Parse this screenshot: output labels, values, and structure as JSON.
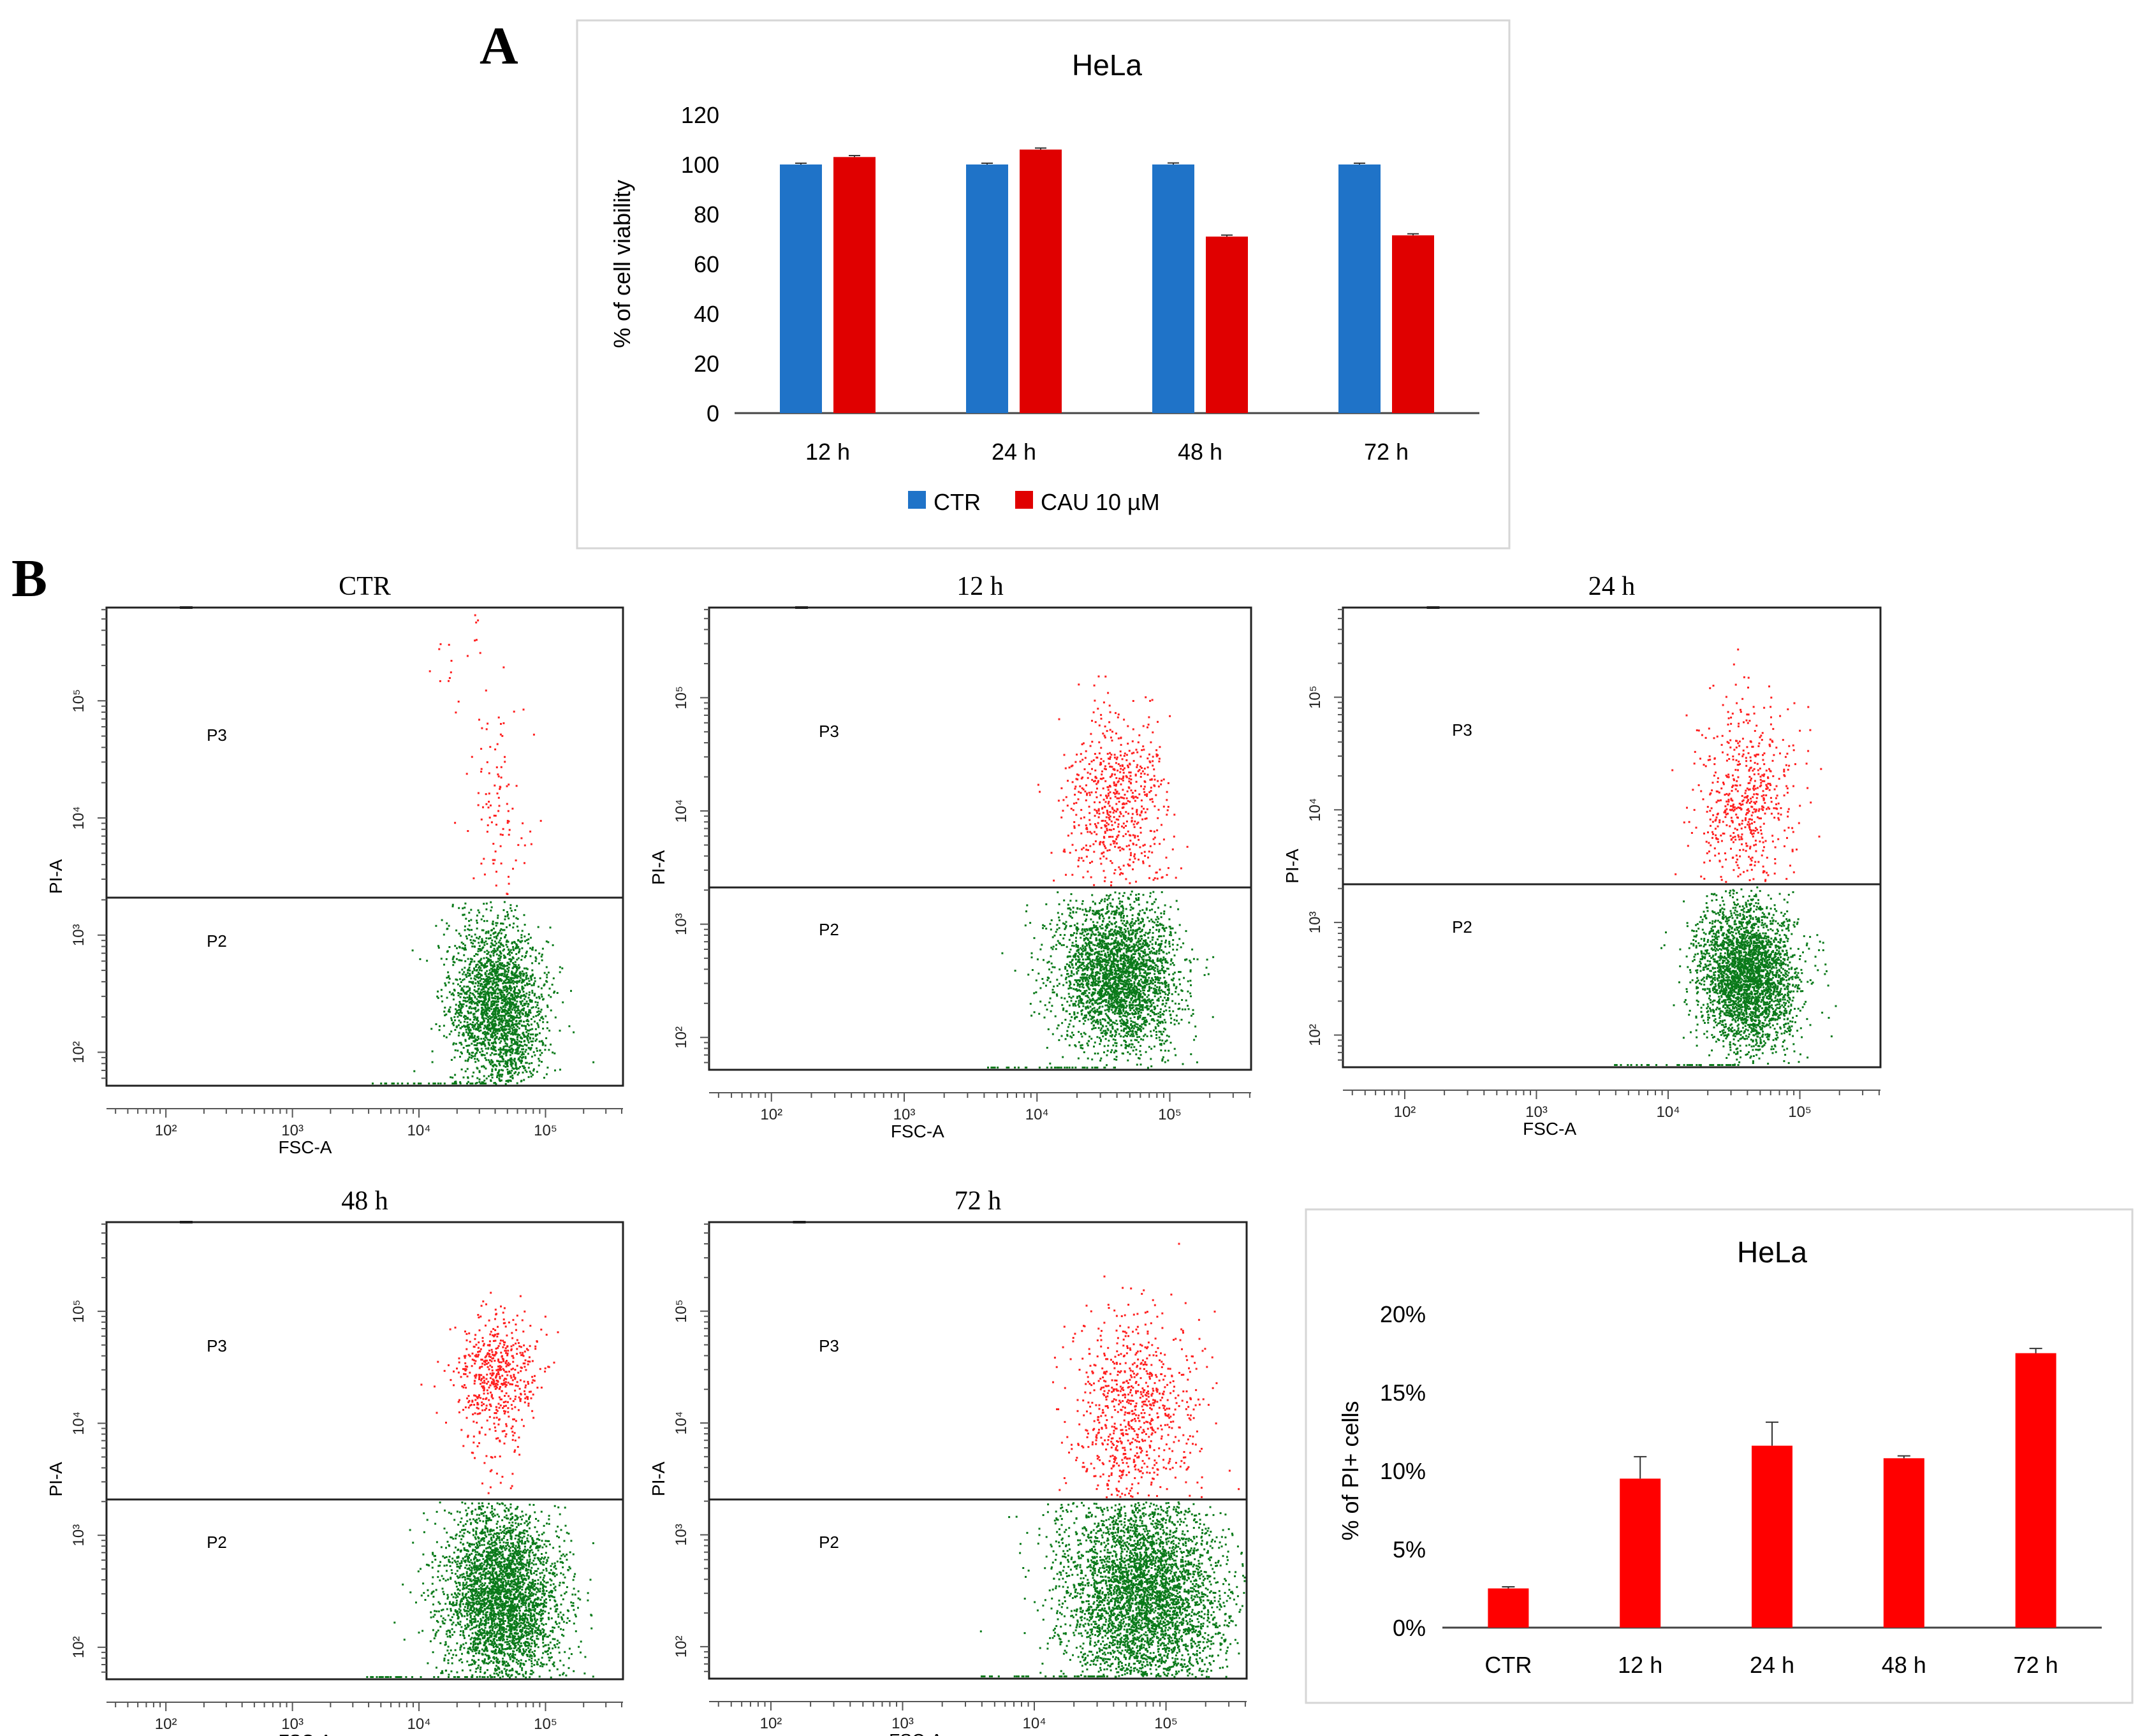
{
  "figure": {
    "panel_a_label": "A",
    "panel_b_label": "B"
  },
  "colors": {
    "ctr_blue": "#1f73c8",
    "cau_red": "#e00000",
    "pi_bar_red": "#ff0000",
    "p3_dot": "#ff2020",
    "p2_dot": "#0a7a1a",
    "error_bar": "#333333",
    "axis": "#000000"
  },
  "chart_data": [
    {
      "id": "panel-a",
      "type": "bar",
      "title": "HeLa",
      "xlabel": "",
      "ylabel": "% of cell viability",
      "categories": [
        "12 h",
        "24 h",
        "48 h",
        "72 h"
      ],
      "series": [
        {
          "name": "CTR",
          "values": [
            100,
            100,
            100,
            100
          ],
          "errors": [
            0.5,
            0.5,
            0.6,
            0.5
          ]
        },
        {
          "name": "CAU 10 µM",
          "values": [
            103,
            106,
            71,
            71.5
          ],
          "errors": [
            0.6,
            0.6,
            0.6,
            0.6
          ]
        }
      ],
      "ylim": [
        0,
        120
      ],
      "yticks": [
        "0",
        "20",
        "40",
        "60",
        "80",
        "100",
        "120"
      ],
      "legend": [
        "CTR",
        "CAU 10 µM"
      ],
      "legend_position": "bottom"
    },
    {
      "id": "panel-b-bar",
      "type": "bar",
      "title": "HeLa",
      "xlabel": "",
      "ylabel": "% of PI+ cells",
      "categories": [
        "CTR",
        "12 h",
        "24 h",
        "48 h",
        "72 h"
      ],
      "values": [
        2.5,
        9.5,
        11.6,
        10.8,
        17.5
      ],
      "errors": [
        0.1,
        1.4,
        1.5,
        0.15,
        0.3
      ],
      "ylim": [
        0,
        20
      ],
      "yticks": [
        "0%",
        "5%",
        "10%",
        "15%",
        "20%"
      ]
    }
  ],
  "flow_plots": [
    {
      "title": "CTR",
      "xlabel": "FSC-A",
      "ylabel": "PI-A",
      "gates": [
        "P3",
        "P2"
      ],
      "xticks": [
        "10²",
        "10³",
        "10⁴",
        "10⁵"
      ],
      "yticks": [
        "10²",
        "10³",
        "10⁴",
        "10⁵"
      ]
    },
    {
      "title": "12 h",
      "xlabel": "FSC-A",
      "ylabel": "PI-A",
      "gates": [
        "P3",
        "P2"
      ],
      "xticks": [
        "10²",
        "10³",
        "10⁴",
        "10⁵"
      ],
      "yticks": [
        "10²",
        "10³",
        "10⁴",
        "10⁵"
      ]
    },
    {
      "title": "24 h",
      "xlabel": "FSC-A",
      "ylabel": "PI-A",
      "gates": [
        "P3",
        "P2"
      ],
      "xticks": [
        "10²",
        "10³",
        "10⁴",
        "10⁵"
      ],
      "yticks": [
        "10²",
        "10³",
        "10⁴",
        "10⁵"
      ]
    },
    {
      "title": "48 h",
      "xlabel": "FSC-A",
      "ylabel": "PI-A",
      "gates": [
        "P3",
        "P2"
      ],
      "xticks": [
        "10²",
        "10³",
        "10⁴",
        "10⁵"
      ],
      "yticks": [
        "10²",
        "10³",
        "10⁴",
        "10⁵"
      ]
    },
    {
      "title": "72 h",
      "xlabel": "FSC-A",
      "ylabel": "PI-A",
      "gates": [
        "P3",
        "P2"
      ],
      "xticks": [
        "10²",
        "10³",
        "10⁴",
        "10⁵"
      ],
      "yticks": [
        "10²",
        "10³",
        "10⁴",
        "10⁵"
      ]
    }
  ]
}
